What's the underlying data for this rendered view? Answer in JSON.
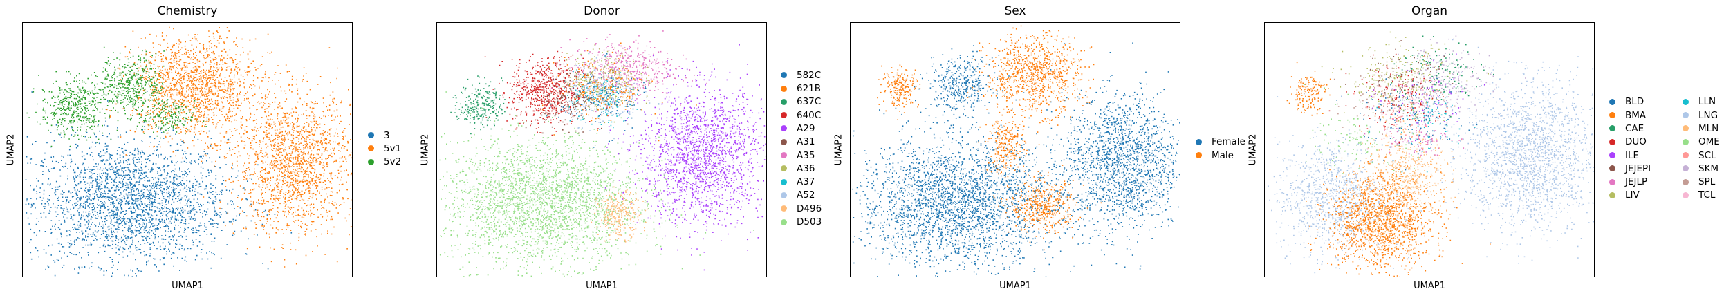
{
  "chart_data": [
    {
      "type": "scatter",
      "title": "Chemistry",
      "xlabel": "UMAP1",
      "ylabel": "UMAP2",
      "legend_placement": "right",
      "legend_columns": 1,
      "categories": [
        {
          "name": "3",
          "color": "#1f77b4"
        },
        {
          "name": "5v1",
          "color": "#ff7f0e"
        },
        {
          "name": "5v2",
          "color": "#2ca02c"
        }
      ],
      "clusters": [
        {
          "category": "3",
          "cx": 0.32,
          "cy": 0.3,
          "rx": 0.27,
          "ry": 0.22,
          "n": 2600
        },
        {
          "category": "5v1",
          "cx": 0.52,
          "cy": 0.75,
          "rx": 0.17,
          "ry": 0.18,
          "n": 1500
        },
        {
          "category": "5v1",
          "cx": 0.82,
          "cy": 0.45,
          "rx": 0.16,
          "ry": 0.25,
          "n": 1700
        },
        {
          "category": "5v2",
          "cx": 0.15,
          "cy": 0.67,
          "rx": 0.09,
          "ry": 0.1,
          "n": 450
        },
        {
          "category": "5v2",
          "cx": 0.33,
          "cy": 0.76,
          "rx": 0.09,
          "ry": 0.1,
          "n": 450
        },
        {
          "category": "5v2",
          "cx": 0.43,
          "cy": 0.63,
          "rx": 0.08,
          "ry": 0.06,
          "n": 200
        }
      ]
    },
    {
      "type": "scatter",
      "title": "Donor",
      "xlabel": "UMAP1",
      "ylabel": "UMAP2",
      "legend_placement": "right",
      "legend_columns": 1,
      "categories": [
        {
          "name": "582C",
          "color": "#1f77b4"
        },
        {
          "name": "621B",
          "color": "#ff7f0e"
        },
        {
          "name": "637C",
          "color": "#279e68"
        },
        {
          "name": "640C",
          "color": "#d62728"
        },
        {
          "name": "A29",
          "color": "#aa40fc"
        },
        {
          "name": "A31",
          "color": "#8c564b"
        },
        {
          "name": "A35",
          "color": "#e377c2"
        },
        {
          "name": "A36",
          "color": "#b5bd61"
        },
        {
          "name": "A37",
          "color": "#17becf"
        },
        {
          "name": "A52",
          "color": "#aec7e8"
        },
        {
          "name": "D496",
          "color": "#ffbb78"
        },
        {
          "name": "D503",
          "color": "#98df8a"
        }
      ],
      "clusters": [
        {
          "category": "D503",
          "cx": 0.32,
          "cy": 0.3,
          "rx": 0.27,
          "ry": 0.22,
          "n": 2700
        },
        {
          "category": "A29",
          "cx": 0.8,
          "cy": 0.48,
          "rx": 0.17,
          "ry": 0.24,
          "n": 1800
        },
        {
          "category": "637C",
          "cx": 0.13,
          "cy": 0.68,
          "rx": 0.06,
          "ry": 0.08,
          "n": 250
        },
        {
          "category": "640C",
          "cx": 0.33,
          "cy": 0.73,
          "rx": 0.1,
          "ry": 0.12,
          "n": 650
        },
        {
          "category": "A35",
          "cx": 0.56,
          "cy": 0.82,
          "rx": 0.14,
          "ry": 0.1,
          "n": 500
        },
        {
          "category": "A36",
          "cx": 0.5,
          "cy": 0.78,
          "rx": 0.1,
          "ry": 0.1,
          "n": 260
        },
        {
          "category": "A52",
          "cx": 0.5,
          "cy": 0.72,
          "rx": 0.1,
          "ry": 0.1,
          "n": 260
        },
        {
          "category": "A37",
          "cx": 0.48,
          "cy": 0.7,
          "rx": 0.1,
          "ry": 0.1,
          "n": 140
        },
        {
          "category": "A31",
          "cx": 0.4,
          "cy": 0.7,
          "rx": 0.1,
          "ry": 0.1,
          "n": 160
        },
        {
          "category": "621B",
          "cx": 0.5,
          "cy": 0.74,
          "rx": 0.12,
          "ry": 0.12,
          "n": 200
        },
        {
          "category": "582C",
          "cx": 0.5,
          "cy": 0.7,
          "rx": 0.12,
          "ry": 0.12,
          "n": 120
        },
        {
          "category": "D496",
          "cx": 0.55,
          "cy": 0.25,
          "rx": 0.06,
          "ry": 0.08,
          "n": 260
        }
      ]
    },
    {
      "type": "scatter",
      "title": "Sex",
      "xlabel": "UMAP1",
      "ylabel": "UMAP2",
      "legend_placement": "right",
      "legend_columns": 1,
      "categories": [
        {
          "name": "Female",
          "color": "#1f77b4"
        },
        {
          "name": "Male",
          "color": "#ff7f0e"
        }
      ],
      "clusters": [
        {
          "category": "Female",
          "cx": 0.32,
          "cy": 0.3,
          "rx": 0.27,
          "ry": 0.22,
          "n": 2700
        },
        {
          "category": "Female",
          "cx": 0.82,
          "cy": 0.45,
          "rx": 0.16,
          "ry": 0.24,
          "n": 1700
        },
        {
          "category": "Female",
          "cx": 0.33,
          "cy": 0.76,
          "rx": 0.09,
          "ry": 0.1,
          "n": 400
        },
        {
          "category": "Male",
          "cx": 0.55,
          "cy": 0.8,
          "rx": 0.13,
          "ry": 0.14,
          "n": 900
        },
        {
          "category": "Male",
          "cx": 0.15,
          "cy": 0.75,
          "rx": 0.05,
          "ry": 0.07,
          "n": 200
        },
        {
          "category": "Male",
          "cx": 0.58,
          "cy": 0.28,
          "rx": 0.09,
          "ry": 0.09,
          "n": 420
        },
        {
          "category": "Male",
          "cx": 0.47,
          "cy": 0.52,
          "rx": 0.05,
          "ry": 0.1,
          "n": 250
        }
      ]
    },
    {
      "type": "scatter",
      "title": "Organ",
      "xlabel": "UMAP1",
      "ylabel": "UMAP2",
      "legend_placement": "right",
      "legend_columns": 2,
      "categories": [
        {
          "name": "BLD",
          "color": "#1f77b4"
        },
        {
          "name": "BMA",
          "color": "#ff7f0e"
        },
        {
          "name": "CAE",
          "color": "#279e68"
        },
        {
          "name": "DUO",
          "color": "#d62728"
        },
        {
          "name": "ILE",
          "color": "#aa40fc"
        },
        {
          "name": "JEJEPI",
          "color": "#8c564b"
        },
        {
          "name": "JEJLP",
          "color": "#e377c2"
        },
        {
          "name": "LIV",
          "color": "#b5bd61"
        },
        {
          "name": "LLN",
          "color": "#17becf"
        },
        {
          "name": "LNG",
          "color": "#aec7e8"
        },
        {
          "name": "MLN",
          "color": "#ffbb78"
        },
        {
          "name": "OME",
          "color": "#98df8a"
        },
        {
          "name": "SCL",
          "color": "#ff9896"
        },
        {
          "name": "SKM",
          "color": "#c5b0d5"
        },
        {
          "name": "SPL",
          "color": "#c49c94"
        },
        {
          "name": "TCL",
          "color": "#f7b6d2"
        }
      ],
      "clusters": [
        {
          "category": "LNG",
          "cx": 0.8,
          "cy": 0.48,
          "rx": 0.18,
          "ry": 0.26,
          "n": 1800
        },
        {
          "category": "LNG",
          "cx": 0.2,
          "cy": 0.32,
          "rx": 0.15,
          "ry": 0.2,
          "n": 900
        },
        {
          "category": "BMA",
          "cx": 0.35,
          "cy": 0.22,
          "rx": 0.14,
          "ry": 0.17,
          "n": 1400
        },
        {
          "category": "BMA",
          "cx": 0.13,
          "cy": 0.73,
          "rx": 0.05,
          "ry": 0.07,
          "n": 160
        },
        {
          "category": "MLN",
          "cx": 0.43,
          "cy": 0.4,
          "rx": 0.12,
          "ry": 0.15,
          "n": 500
        },
        {
          "category": "LIV",
          "cx": 0.4,
          "cy": 0.78,
          "rx": 0.14,
          "ry": 0.12,
          "n": 250
        },
        {
          "category": "SKM",
          "cx": 0.55,
          "cy": 0.78,
          "rx": 0.12,
          "ry": 0.12,
          "n": 250
        },
        {
          "category": "BLD",
          "cx": 0.45,
          "cy": 0.62,
          "rx": 0.14,
          "ry": 0.12,
          "n": 160
        },
        {
          "category": "DUO",
          "cx": 0.4,
          "cy": 0.72,
          "rx": 0.12,
          "ry": 0.12,
          "n": 140
        },
        {
          "category": "JEJLP",
          "cx": 0.45,
          "cy": 0.55,
          "rx": 0.1,
          "ry": 0.06,
          "n": 90
        },
        {
          "category": "CAE",
          "cx": 0.52,
          "cy": 0.8,
          "rx": 0.12,
          "ry": 0.12,
          "n": 120
        },
        {
          "category": "OME",
          "cx": 0.3,
          "cy": 0.55,
          "rx": 0.14,
          "ry": 0.12,
          "n": 120
        },
        {
          "category": "ILE",
          "cx": 0.48,
          "cy": 0.7,
          "rx": 0.12,
          "ry": 0.12,
          "n": 80
        },
        {
          "category": "SPL",
          "cx": 0.35,
          "cy": 0.7,
          "rx": 0.14,
          "ry": 0.12,
          "n": 80
        },
        {
          "category": "JEJEPI",
          "cx": 0.42,
          "cy": 0.8,
          "rx": 0.12,
          "ry": 0.1,
          "n": 60
        },
        {
          "category": "LLN",
          "cx": 0.5,
          "cy": 0.6,
          "rx": 0.12,
          "ry": 0.12,
          "n": 60
        },
        {
          "category": "SCL",
          "cx": 0.4,
          "cy": 0.65,
          "rx": 0.1,
          "ry": 0.1,
          "n": 60
        },
        {
          "category": "TCL",
          "cx": 0.45,
          "cy": 0.68,
          "rx": 0.1,
          "ry": 0.1,
          "n": 60
        }
      ]
    }
  ]
}
